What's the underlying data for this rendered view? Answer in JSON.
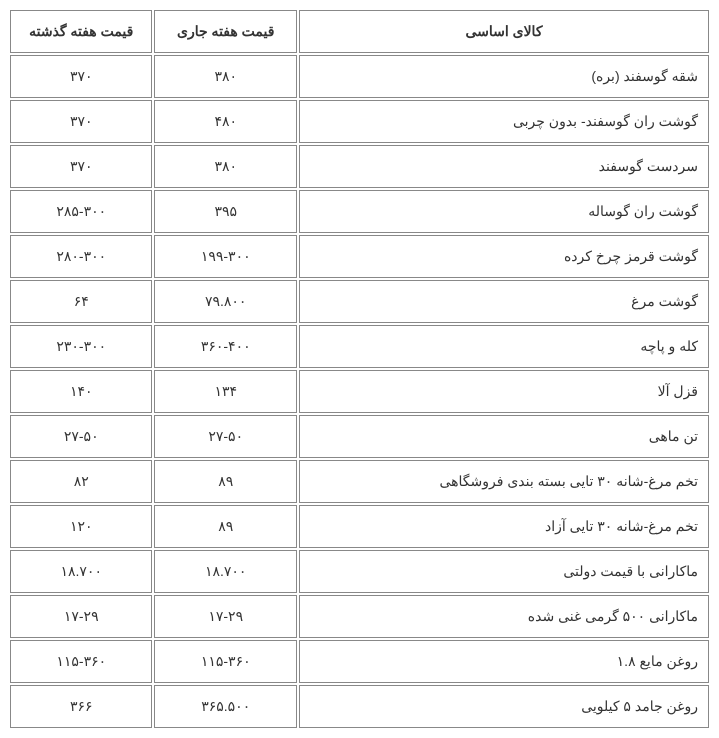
{
  "table": {
    "columns": [
      {
        "key": "name",
        "label": "کالای اساسی",
        "width": "59%",
        "align_header": "center",
        "align_cell": "right"
      },
      {
        "key": "current",
        "label": "قیمت هفته جاری",
        "width": "20.5%",
        "align_header": "center",
        "align_cell": "center"
      },
      {
        "key": "previous",
        "label": "قیمت هفته گذشته",
        "width": "20.5%",
        "align_header": "center",
        "align_cell": "center"
      }
    ],
    "rows": [
      {
        "name": "شقه گوسفند (بره)",
        "current": "۳۸۰",
        "previous": "۳۷۰"
      },
      {
        "name": "گوشت ران گوسفند- بدون چربی",
        "current": "۴۸۰",
        "previous": "۳۷۰"
      },
      {
        "name": "سردست گوسفند",
        "current": "۳۸۰",
        "previous": "۳۷۰"
      },
      {
        "name": "گوشت ران گوساله",
        "current": "۳۹۵",
        "previous": "۲۸۵-۳۰۰"
      },
      {
        "name": "گوشت قرمز چرخ کرده",
        "current": "۱۹۹-۳۰۰",
        "previous": "۲۸۰-۳۰۰"
      },
      {
        "name": "گوشت مرغ",
        "current": "۷۹.۸۰۰",
        "previous": "۶۴"
      },
      {
        "name": "کله و پاچه",
        "current": "۳۶۰-۴۰۰",
        "previous": "۲۳۰-۳۰۰"
      },
      {
        "name": "قزل آلا",
        "current": "۱۳۴",
        "previous": "۱۴۰"
      },
      {
        "name": "تن ماهی",
        "current": "۲۷-۵۰",
        "previous": "۲۷-۵۰"
      },
      {
        "name": "تخم مرغ-شانه ۳۰ تایی بسته بندی فروشگاهی",
        "current": "۸۹",
        "previous": "۸۲"
      },
      {
        "name": "تخم مرغ-شانه ۳۰ تایی آزاد",
        "current": "۸۹",
        "previous": "۱۲۰"
      },
      {
        "name": "ماکارانی با قیمت دولتی",
        "current": "۱۸.۷۰۰",
        "previous": "۱۸.۷۰۰"
      },
      {
        "name": "ماکارانی ۵۰۰ گرمی غنی شده",
        "current": "۱۷-۲۹",
        "previous": "۱۷-۲۹"
      },
      {
        "name": "روغن مایع ۱.۸",
        "current": "۱۱۵-۳۶۰",
        "previous": "۱۱۵-۳۶۰"
      },
      {
        "name": "روغن جامد ۵ کیلویی",
        "current": "۳۶۵.۵۰۰",
        "previous": "۳۶۶"
      }
    ],
    "styling": {
      "border_color": "#888888",
      "border_width": 1,
      "cell_padding_v": 12,
      "cell_padding_h": 10,
      "font_size": 14,
      "text_color": "#333333",
      "background_color": "#ffffff",
      "header_font_weight": "bold",
      "border_spacing": 2,
      "font_family": "Tahoma"
    }
  }
}
